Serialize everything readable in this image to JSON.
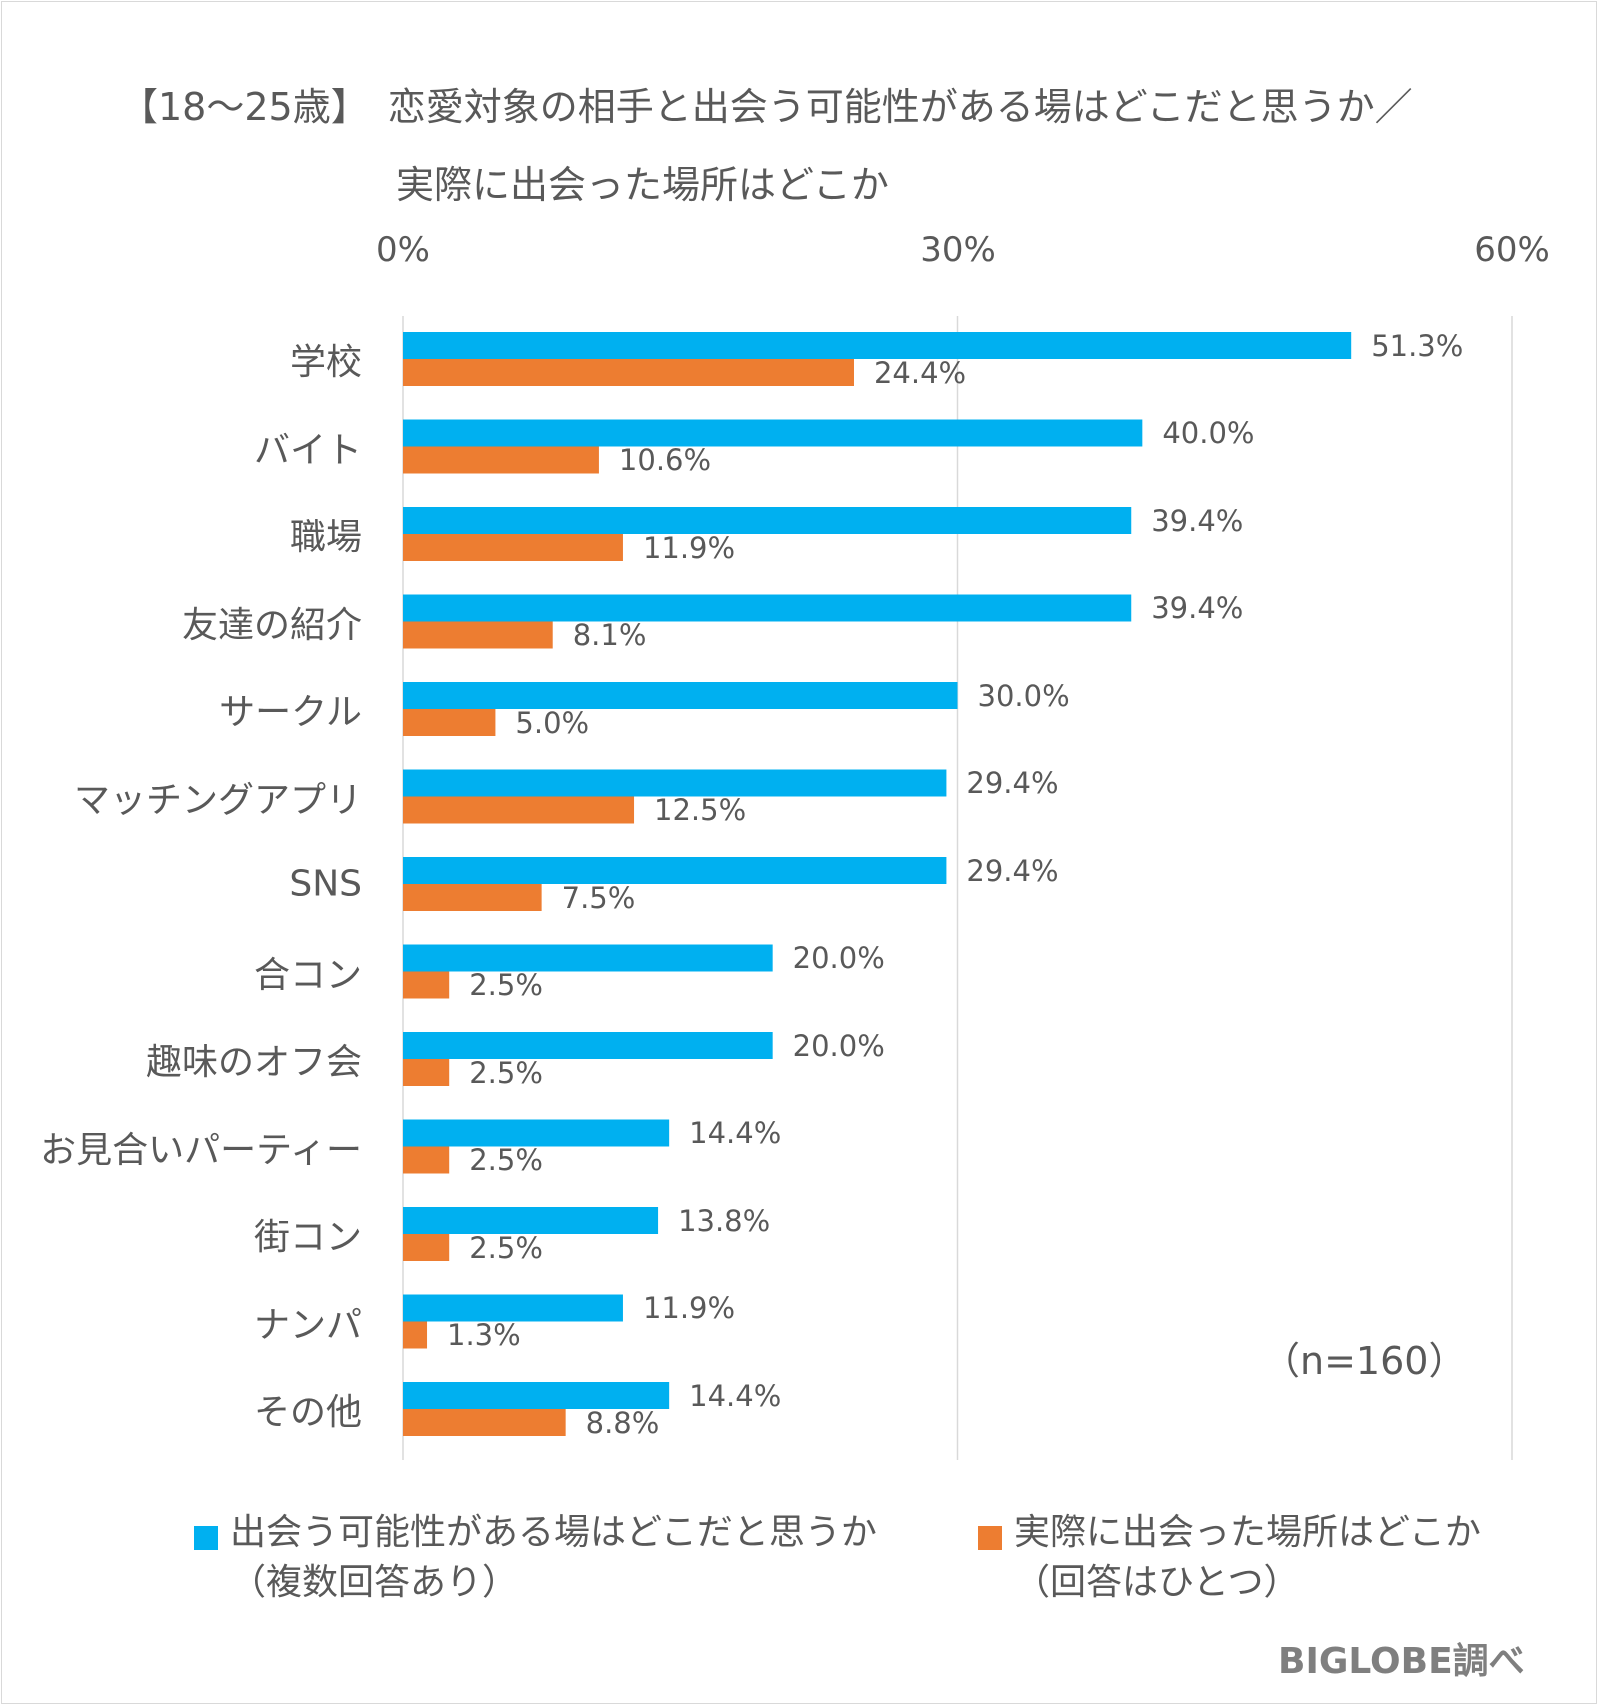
{
  "chart_data": {
    "type": "bar",
    "orientation": "horizontal",
    "title": "【18～25歳】　恋愛対象の相手と出会う可能性がある場はどこだと思うか／",
    "subtitle": "実際に出会った場所はどこか",
    "categories": [
      "学校",
      "バイト",
      "職場",
      "友達の紹介",
      "サークル",
      "マッチングアプリ",
      "SNS",
      "合コン",
      "趣味のオフ会",
      "お見合いパーティー",
      "街コン",
      "ナンパ",
      "その他"
    ],
    "series": [
      {
        "name": "出会う可能性がある場はどこだと思うか",
        "name_note": "（複数回答あり）",
        "color": "#00b0f0",
        "values": [
          51.3,
          40.0,
          39.4,
          39.4,
          30.0,
          29.4,
          29.4,
          20.0,
          20.0,
          14.4,
          13.8,
          11.9,
          14.4
        ],
        "labels": [
          "51.3%",
          "40.0%",
          "39.4%",
          "39.4%",
          "30.0%",
          "29.4%",
          "29.4%",
          "20.0%",
          "20.0%",
          "14.4%",
          "13.8%",
          "11.9%",
          "14.4%"
        ]
      },
      {
        "name": "実際に出会った場所はどこか",
        "name_note": "（回答はひとつ）",
        "color": "#ed7d31",
        "values": [
          24.4,
          10.6,
          11.9,
          8.1,
          5.0,
          12.5,
          7.5,
          2.5,
          2.5,
          2.5,
          2.5,
          1.3,
          8.8
        ],
        "labels": [
          "24.4%",
          "10.6%",
          "11.9%",
          "8.1%",
          "5.0%",
          "12.5%",
          "7.5%",
          "2.5%",
          "2.5%",
          "2.5%",
          "2.5%",
          "1.3%",
          "8.8%"
        ]
      }
    ],
    "xlim": [
      0,
      60
    ],
    "xticks": [
      "0%",
      "30%",
      "60%"
    ],
    "grid": true,
    "legend_position": "bottom",
    "note": "（n=160）",
    "source": "BIGLOBE調べ"
  }
}
